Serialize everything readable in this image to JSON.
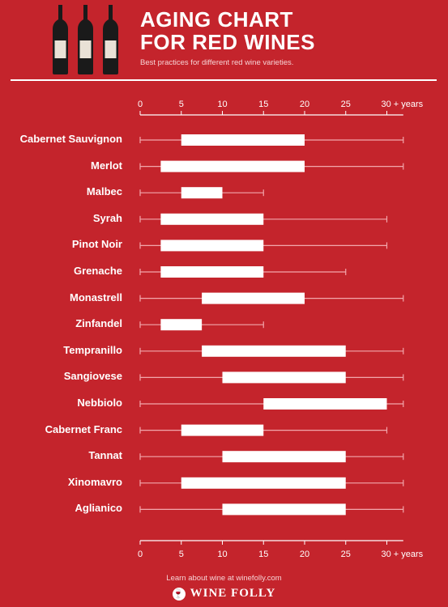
{
  "header": {
    "title": "AGING CHART\nFOR RED WINES",
    "subtitle": "Best practices for different red wine varieties."
  },
  "footer": {
    "text": "Learn about wine at winefolly.com",
    "brand": "WINE FOLLY"
  },
  "colors": {
    "background": "#c4242c",
    "bar": "#ffffff",
    "whisker": "#f2a7ac",
    "text": "#ffffff"
  },
  "chart_data": {
    "type": "range-bar",
    "title": "AGING CHART FOR RED WINES",
    "subtitle": "Best practices for different red wine varieties.",
    "xlabel": "",
    "ylabel": "",
    "x_ticks": [
      "0",
      "5",
      "10",
      "15",
      "20",
      "25",
      "30 + years"
    ],
    "tick_values": [
      0,
      5,
      10,
      15,
      20,
      25,
      30
    ],
    "xlim": [
      0,
      32
    ],
    "axis_position": "top and bottom",
    "series": [
      {
        "wine": "Cabernet Sauvignon",
        "whisker_min": 0,
        "bar_start": 5,
        "bar_end": 20,
        "whisker_max": 32
      },
      {
        "wine": "Merlot",
        "whisker_min": 0,
        "bar_start": 2.5,
        "bar_end": 20,
        "whisker_max": 32
      },
      {
        "wine": "Malbec",
        "whisker_min": 0,
        "bar_start": 5,
        "bar_end": 10,
        "whisker_max": 15
      },
      {
        "wine": "Syrah",
        "whisker_min": 0,
        "bar_start": 2.5,
        "bar_end": 15,
        "whisker_max": 30
      },
      {
        "wine": "Pinot Noir",
        "whisker_min": 0,
        "bar_start": 2.5,
        "bar_end": 15,
        "whisker_max": 30
      },
      {
        "wine": "Grenache",
        "whisker_min": 0,
        "bar_start": 2.5,
        "bar_end": 15,
        "whisker_max": 25
      },
      {
        "wine": "Monastrell",
        "whisker_min": 0,
        "bar_start": 7.5,
        "bar_end": 20,
        "whisker_max": 32
      },
      {
        "wine": "Zinfandel",
        "whisker_min": 0,
        "bar_start": 2.5,
        "bar_end": 7.5,
        "whisker_max": 15
      },
      {
        "wine": "Tempranillo",
        "whisker_min": 0,
        "bar_start": 7.5,
        "bar_end": 25,
        "whisker_max": 32
      },
      {
        "wine": "Sangiovese",
        "whisker_min": 0,
        "bar_start": 10,
        "bar_end": 25,
        "whisker_max": 32
      },
      {
        "wine": "Nebbiolo",
        "whisker_min": 0,
        "bar_start": 15,
        "bar_end": 30,
        "whisker_max": 32
      },
      {
        "wine": "Cabernet Franc",
        "whisker_min": 0,
        "bar_start": 5,
        "bar_end": 15,
        "whisker_max": 30
      },
      {
        "wine": "Tannat",
        "whisker_min": 0,
        "bar_start": 10,
        "bar_end": 25,
        "whisker_max": 32
      },
      {
        "wine": "Xinomavro",
        "whisker_min": 0,
        "bar_start": 5,
        "bar_end": 25,
        "whisker_max": 32
      },
      {
        "wine": "Aglianico",
        "whisker_min": 0,
        "bar_start": 10,
        "bar_end": 25,
        "whisker_max": 32
      }
    ]
  }
}
